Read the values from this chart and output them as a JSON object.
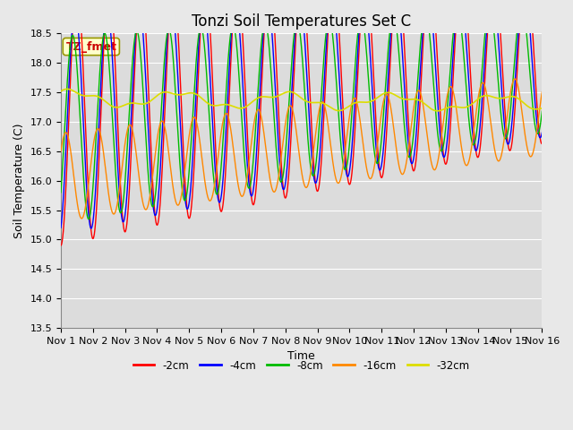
{
  "title": "Tonzi Soil Temperatures Set C",
  "xlabel": "Time",
  "ylabel": "Soil Temperature (C)",
  "ylim": [
    13.5,
    18.5
  ],
  "xlim": [
    0,
    15
  ],
  "xtick_labels": [
    "Nov 1",
    "Nov 2",
    "Nov 3",
    "Nov 4",
    "Nov 5",
    "Nov 6",
    "Nov 7",
    "Nov 8",
    "Nov 9",
    "Nov 10",
    "Nov 11",
    "Nov 12",
    "Nov 13",
    "Nov 14",
    "Nov 15",
    "Nov 16"
  ],
  "ytick_vals": [
    13.5,
    14.0,
    14.5,
    15.0,
    15.5,
    16.0,
    16.5,
    17.0,
    17.5,
    18.0,
    18.5
  ],
  "line_colors": [
    "#ff0000",
    "#0000ff",
    "#00bb00",
    "#ff8800",
    "#dddd00"
  ],
  "line_labels": [
    "-2cm",
    "-4cm",
    "-8cm",
    "-16cm",
    "-32cm"
  ],
  "legend_label": "TZ_fmet",
  "legend_box_color": "#ffffcc",
  "legend_box_edge": "#999900",
  "fig_facecolor": "#e8e8e8",
  "ax_facecolor": "#dcdcdc",
  "grid_color": "#ffffff",
  "title_fontsize": 12,
  "axis_fontsize": 9,
  "tick_fontsize": 8
}
